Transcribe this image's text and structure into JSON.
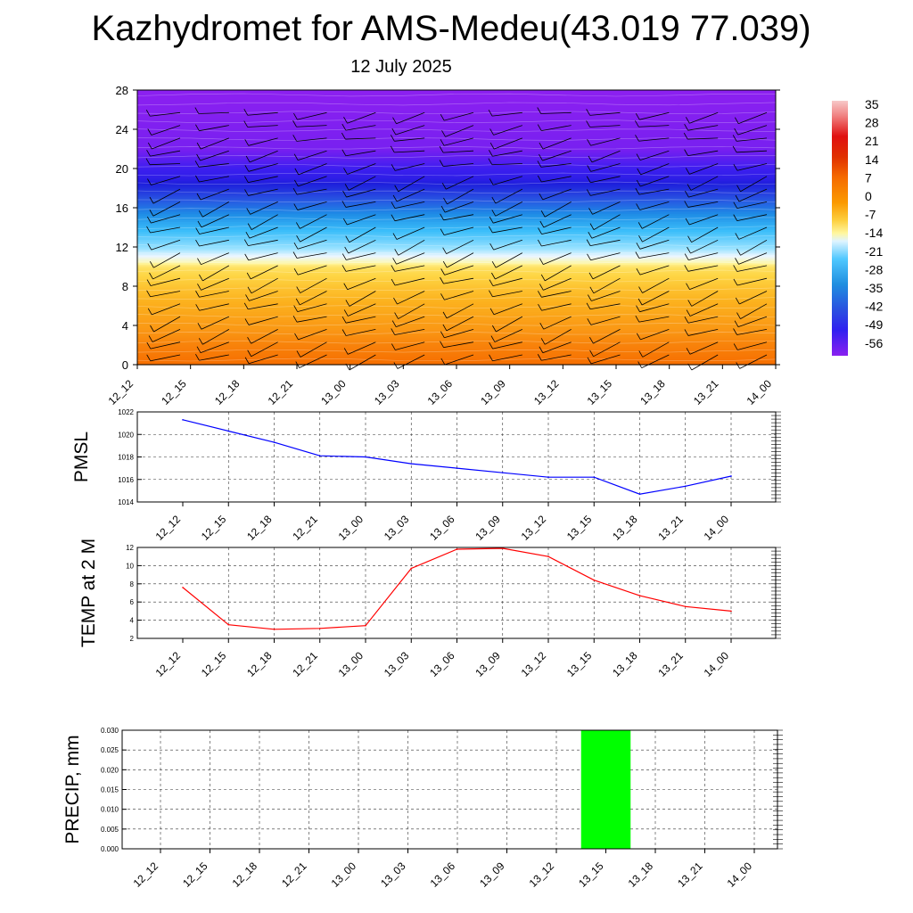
{
  "title": "Kazhydromet for AMS-Medeu(43.019 77.039)",
  "date": "12 July 2025",
  "time_labels": [
    "12_12",
    "12_15",
    "12_18",
    "12_21",
    "13_00",
    "13_03",
    "13_06",
    "13_09",
    "13_12",
    "13_15",
    "13_18",
    "13_21",
    "14_00"
  ],
  "chart_data": [
    {
      "type": "heatmap",
      "title": "",
      "y_ticks": [
        0,
        4,
        8,
        12,
        16,
        20,
        24,
        28
      ],
      "ylim": [
        0,
        28
      ],
      "x": [
        "12_12",
        "12_15",
        "12_18",
        "12_21",
        "13_00",
        "13_03",
        "13_06",
        "13_09",
        "13_12",
        "13_15",
        "13_18",
        "13_21",
        "14_00"
      ],
      "colorbar_labels": [
        "35",
        "28",
        "21",
        "14",
        "7",
        "0",
        "-7",
        "-14",
        "-21",
        "-28",
        "-35",
        "-42",
        "-49",
        "-56"
      ],
      "temperature_by_level": [
        {
          "level": 0,
          "value": 12
        },
        {
          "level": 2,
          "value": 9
        },
        {
          "level": 4,
          "value": 5
        },
        {
          "level": 6,
          "value": 1
        },
        {
          "level": 8,
          "value": -3
        },
        {
          "level": 10,
          "value": -8
        },
        {
          "level": 10.5,
          "value": -13
        },
        {
          "level": 11.5,
          "value": -18
        },
        {
          "level": 13,
          "value": -25
        },
        {
          "level": 15,
          "value": -34
        },
        {
          "level": 17,
          "value": -44
        },
        {
          "level": 19,
          "value": -52
        },
        {
          "level": 20,
          "value": -54
        },
        {
          "level": 22,
          "value": -57
        },
        {
          "level": 28,
          "value": -58
        }
      ],
      "wind_barbs": "present"
    },
    {
      "type": "line",
      "ylabel": "PMSL",
      "x": [
        "12_12",
        "12_15",
        "12_18",
        "12_21",
        "13_00",
        "13_03",
        "13_06",
        "13_09",
        "13_12",
        "13_15",
        "13_18",
        "13_21",
        "14_00"
      ],
      "y_ticks": [
        1014,
        1016,
        1018,
        1020,
        1022
      ],
      "ylim": [
        1014,
        1022
      ],
      "grid": true,
      "series": [
        {
          "color": "#0000ff",
          "values": [
            1021.3,
            1020.3,
            1019.3,
            1018.1,
            1018.0,
            1017.4,
            1017.0,
            1016.6,
            1016.2,
            1016.2,
            1014.7,
            1015.4,
            1016.3
          ]
        }
      ]
    },
    {
      "type": "line",
      "ylabel": "TEMP at 2 M",
      "x": [
        "12_12",
        "12_15",
        "12_18",
        "12_21",
        "13_00",
        "13_03",
        "13_06",
        "13_09",
        "13_12",
        "13_15",
        "13_18",
        "13_21",
        "14_00"
      ],
      "y_ticks": [
        2,
        4,
        6,
        8,
        10,
        12
      ],
      "ylim": [
        2,
        12
      ],
      "grid": true,
      "series": [
        {
          "color": "#ff0000",
          "values": [
            7.6,
            3.5,
            3.0,
            3.1,
            3.4,
            9.7,
            11.8,
            11.9,
            11.0,
            8.4,
            6.7,
            5.5,
            5.0
          ]
        }
      ]
    },
    {
      "type": "bar",
      "ylabel": "PRECIP, mm",
      "x": [
        "12_12",
        "12_15",
        "12_18",
        "12_21",
        "13_00",
        "13_03",
        "13_06",
        "13_09",
        "13_12",
        "13_15",
        "13_18",
        "13_21",
        "14_00"
      ],
      "y_ticks": [
        "0.000",
        "0.005",
        "0.010",
        "0.015",
        "0.020",
        "0.025",
        "0.030"
      ],
      "ylim": [
        0,
        0.03
      ],
      "grid": true,
      "bar_color": "#00ff00",
      "values": [
        0,
        0,
        0,
        0,
        0,
        0,
        0,
        0,
        0,
        0.03,
        0,
        0,
        0
      ]
    }
  ]
}
